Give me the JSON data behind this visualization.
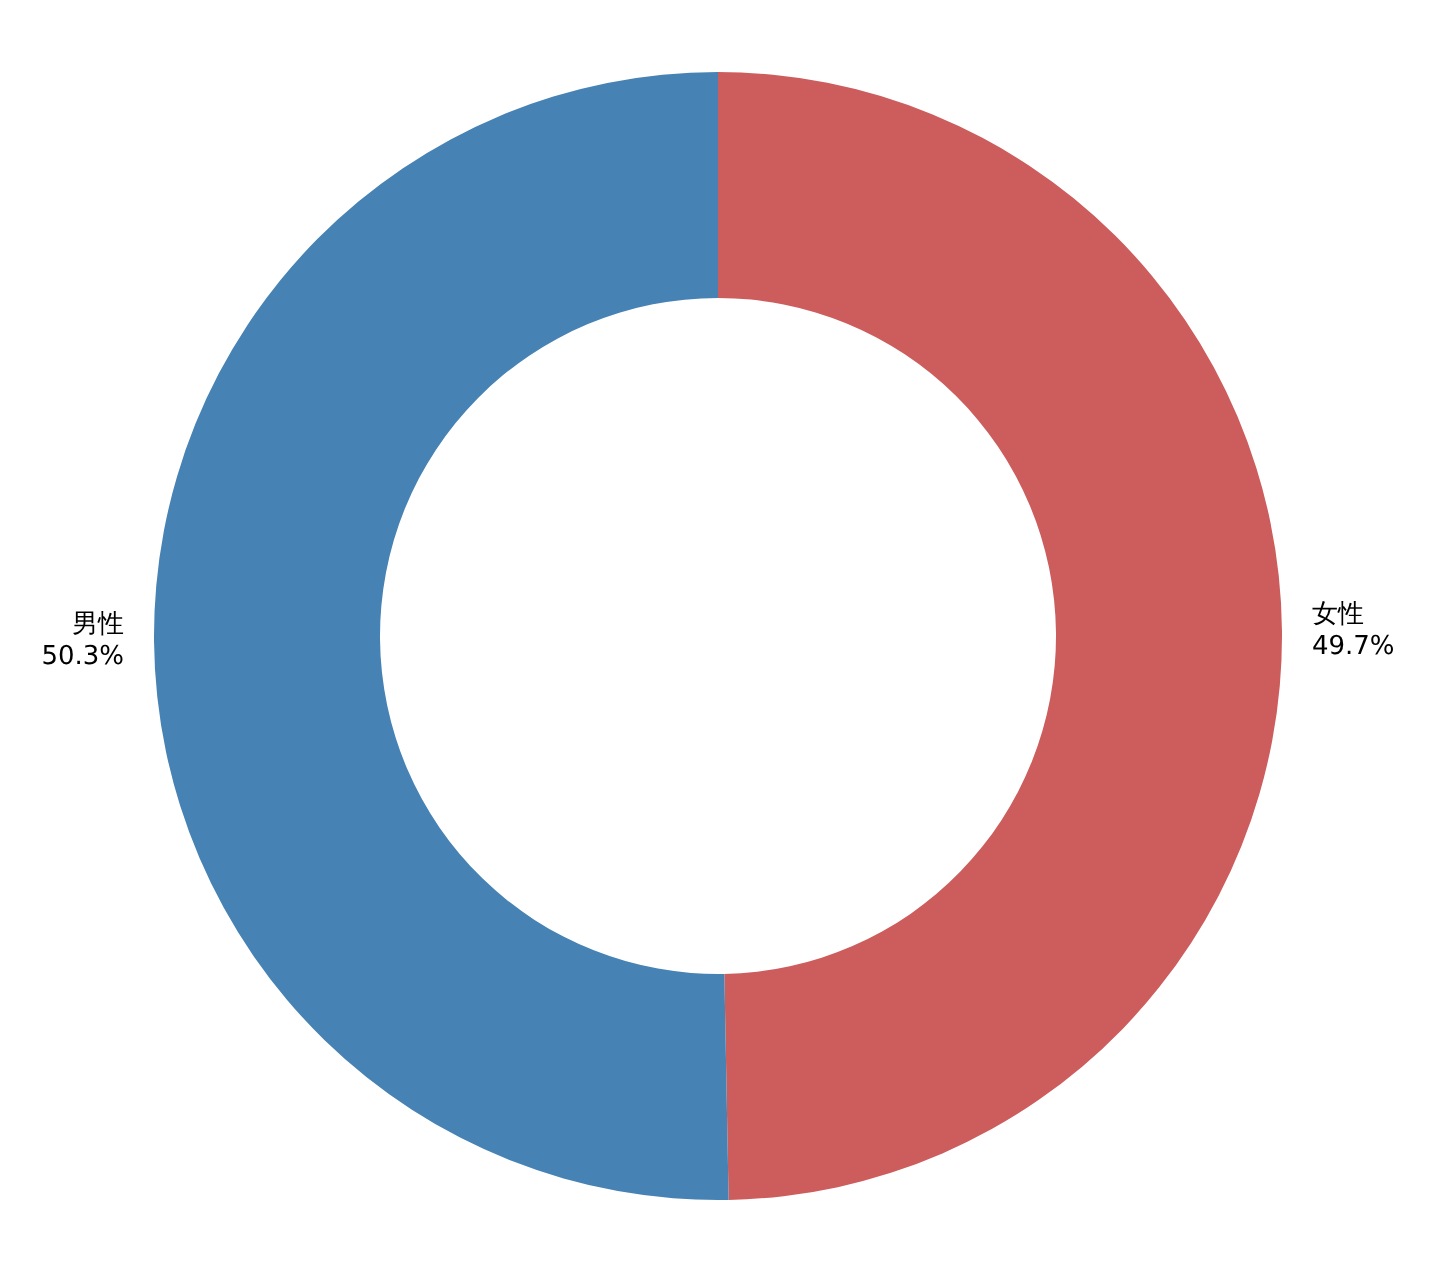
{
  "chart_data": {
    "type": "donut",
    "categories": [
      "女性",
      "男性"
    ],
    "values": [
      49.7,
      50.3
    ],
    "colors": [
      "#cd5c5c",
      "#4682b4"
    ],
    "value_labels": [
      "49.7%",
      "50.3%"
    ],
    "legend": false
  }
}
